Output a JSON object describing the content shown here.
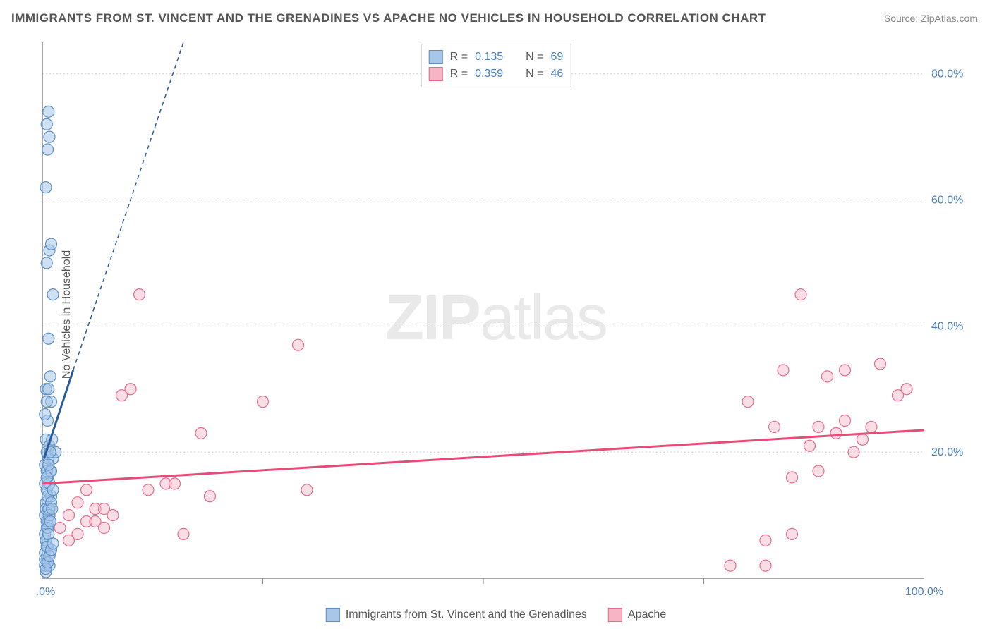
{
  "title": "IMMIGRANTS FROM ST. VINCENT AND THE GRENADINES VS APACHE NO VEHICLES IN HOUSEHOLD CORRELATION CHART",
  "source": "Source: ZipAtlas.com",
  "watermark_zip": "ZIP",
  "watermark_atlas": "atlas",
  "ylabel": "No Vehicles in Household",
  "chart": {
    "type": "scatter",
    "background_color": "#ffffff",
    "grid_color": "#cccccc",
    "axis_color": "#888888",
    "xlim": [
      0,
      100
    ],
    "ylim": [
      0,
      85
    ],
    "xtick_labels": [
      "0.0%",
      "100.0%"
    ],
    "xtick_positions": [
      0,
      100
    ],
    "xtick_minor": [
      25,
      50,
      75
    ],
    "ytick_labels": [
      "20.0%",
      "40.0%",
      "60.0%",
      "80.0%"
    ],
    "ytick_positions": [
      20,
      40,
      60,
      80
    ],
    "series_a": {
      "name": "Immigrants from St. Vincent and the Grenadines",
      "fill": "#a8c7e8",
      "stroke": "#5a8fc9",
      "fill_opacity": 0.55,
      "R": "0.135",
      "N": "69",
      "trend_solid": {
        "x1": 0.2,
        "y1": 19,
        "x2": 3.5,
        "y2": 33
      },
      "trend_dashed": {
        "x1": 3.5,
        "y1": 33,
        "x2": 16,
        "y2": 85
      },
      "trend_color": "#2a5a9a",
      "points": [
        [
          0.4,
          1
        ],
        [
          0.3,
          2
        ],
        [
          0.5,
          3
        ],
        [
          0.8,
          2
        ],
        [
          0.3,
          4
        ],
        [
          0.6,
          5
        ],
        [
          0.4,
          6
        ],
        [
          0.9,
          4
        ],
        [
          0.5,
          8
        ],
        [
          0.3,
          10
        ],
        [
          0.7,
          9
        ],
        [
          0.4,
          12
        ],
        [
          0.8,
          11
        ],
        [
          0.5,
          14
        ],
        [
          1.0,
          13
        ],
        [
          0.6,
          16
        ],
        [
          0.3,
          18
        ],
        [
          0.9,
          17
        ],
        [
          0.5,
          20
        ],
        [
          1.2,
          19
        ],
        [
          0.4,
          22
        ],
        [
          0.8,
          21
        ],
        [
          1.5,
          20
        ],
        [
          0.6,
          25
        ],
        [
          1.0,
          28
        ],
        [
          0.4,
          30
        ],
        [
          0.7,
          38
        ],
        [
          1.2,
          45
        ],
        [
          0.5,
          50
        ],
        [
          0.8,
          52
        ],
        [
          1.0,
          53
        ],
        [
          0.4,
          62
        ],
        [
          0.6,
          68
        ],
        [
          0.8,
          70
        ],
        [
          0.5,
          72
        ],
        [
          0.7,
          74
        ],
        [
          0.3,
          15
        ],
        [
          0.5,
          17
        ],
        [
          0.7,
          19
        ],
        [
          0.4,
          11
        ],
        [
          0.6,
          13
        ],
        [
          0.8,
          15
        ],
        [
          1.0,
          17
        ],
        [
          0.3,
          7
        ],
        [
          0.5,
          9
        ],
        [
          0.7,
          11
        ],
        [
          0.4,
          6
        ],
        [
          0.6,
          8
        ],
        [
          0.8,
          10
        ],
        [
          1.0,
          12
        ],
        [
          1.2,
          14
        ],
        [
          0.3,
          3
        ],
        [
          0.5,
          5
        ],
        [
          0.7,
          7
        ],
        [
          0.9,
          9
        ],
        [
          1.1,
          11
        ],
        [
          0.4,
          1.5
        ],
        [
          0.6,
          2.5
        ],
        [
          0.8,
          3.5
        ],
        [
          1.0,
          4.5
        ],
        [
          1.2,
          5.5
        ],
        [
          0.5,
          16
        ],
        [
          0.7,
          18
        ],
        [
          0.9,
          20
        ],
        [
          1.1,
          22
        ],
        [
          0.3,
          26
        ],
        [
          0.5,
          28
        ],
        [
          0.7,
          30
        ],
        [
          0.9,
          32
        ]
      ]
    },
    "series_b": {
      "name": "Apache",
      "fill": "#f5b5c5",
      "stroke": "#e56b8a",
      "fill_opacity": 0.45,
      "R": "0.359",
      "N": "46",
      "trend": {
        "x1": 0,
        "y1": 15,
        "x2": 100,
        "y2": 23.5
      },
      "trend_color": "#e94b78",
      "points": [
        [
          2,
          8
        ],
        [
          3,
          10
        ],
        [
          4,
          7
        ],
        [
          5,
          9
        ],
        [
          6,
          11
        ],
        [
          7,
          8
        ],
        [
          8,
          10
        ],
        [
          3,
          6
        ],
        [
          4,
          12
        ],
        [
          5,
          14
        ],
        [
          6,
          9
        ],
        [
          7,
          11
        ],
        [
          9,
          29
        ],
        [
          10,
          30
        ],
        [
          12,
          14
        ],
        [
          14,
          15
        ],
        [
          16,
          7
        ],
        [
          18,
          23
        ],
        [
          15,
          15
        ],
        [
          19,
          13
        ],
        [
          11,
          45
        ],
        [
          25,
          28
        ],
        [
          29,
          37
        ],
        [
          30,
          14
        ],
        [
          78,
          2
        ],
        [
          80,
          28
        ],
        [
          82,
          6
        ],
        [
          83,
          24
        ],
        [
          84,
          33
        ],
        [
          85,
          7
        ],
        [
          86,
          45
        ],
        [
          87,
          21
        ],
        [
          88,
          24
        ],
        [
          89,
          32
        ],
        [
          90,
          23
        ],
        [
          91,
          33
        ],
        [
          92,
          20
        ],
        [
          94,
          24
        ],
        [
          95,
          34
        ],
        [
          97,
          29
        ],
        [
          98,
          30
        ],
        [
          82,
          2
        ],
        [
          85,
          16
        ],
        [
          88,
          17
        ],
        [
          91,
          25
        ],
        [
          93,
          22
        ]
      ]
    }
  },
  "legend_top": {
    "R_label": "R  =",
    "N_label": "N  ="
  },
  "legend_bottom": {
    "a": "Immigrants from St. Vincent and the Grenadines",
    "b": "Apache"
  }
}
